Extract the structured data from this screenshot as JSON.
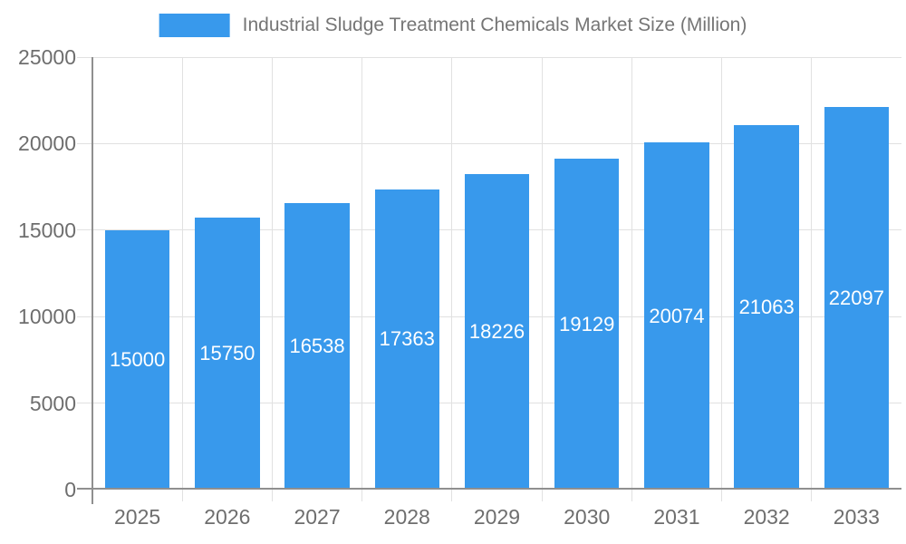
{
  "legend": {
    "label": "Industrial Sludge Treatment Chemicals Market Size (Million)"
  },
  "colors": {
    "bar": "#3899EC",
    "grid": "#E1E1E1",
    "axis": "#8F8F8F",
    "tick_text": "#6E6E6E",
    "legend_text": "#757575",
    "bar_label_text": "#FFFFFF",
    "background": "#FFFFFF"
  },
  "chart_data": {
    "type": "bar",
    "title": "Industrial Sludge Treatment Chemicals Market Size (Million)",
    "categories": [
      "2025",
      "2026",
      "2027",
      "2028",
      "2029",
      "2030",
      "2031",
      "2032",
      "2033"
    ],
    "values": [
      15000,
      15750,
      16538,
      17363,
      18226,
      19129,
      20074,
      21063,
      22097
    ],
    "xlabel": "",
    "ylabel": "",
    "ylim": [
      0,
      25000
    ],
    "yticks": [
      0,
      5000,
      10000,
      15000,
      20000,
      25000
    ],
    "grid": true,
    "legend_position": "top",
    "bar_value_labels": "inside-middle"
  }
}
